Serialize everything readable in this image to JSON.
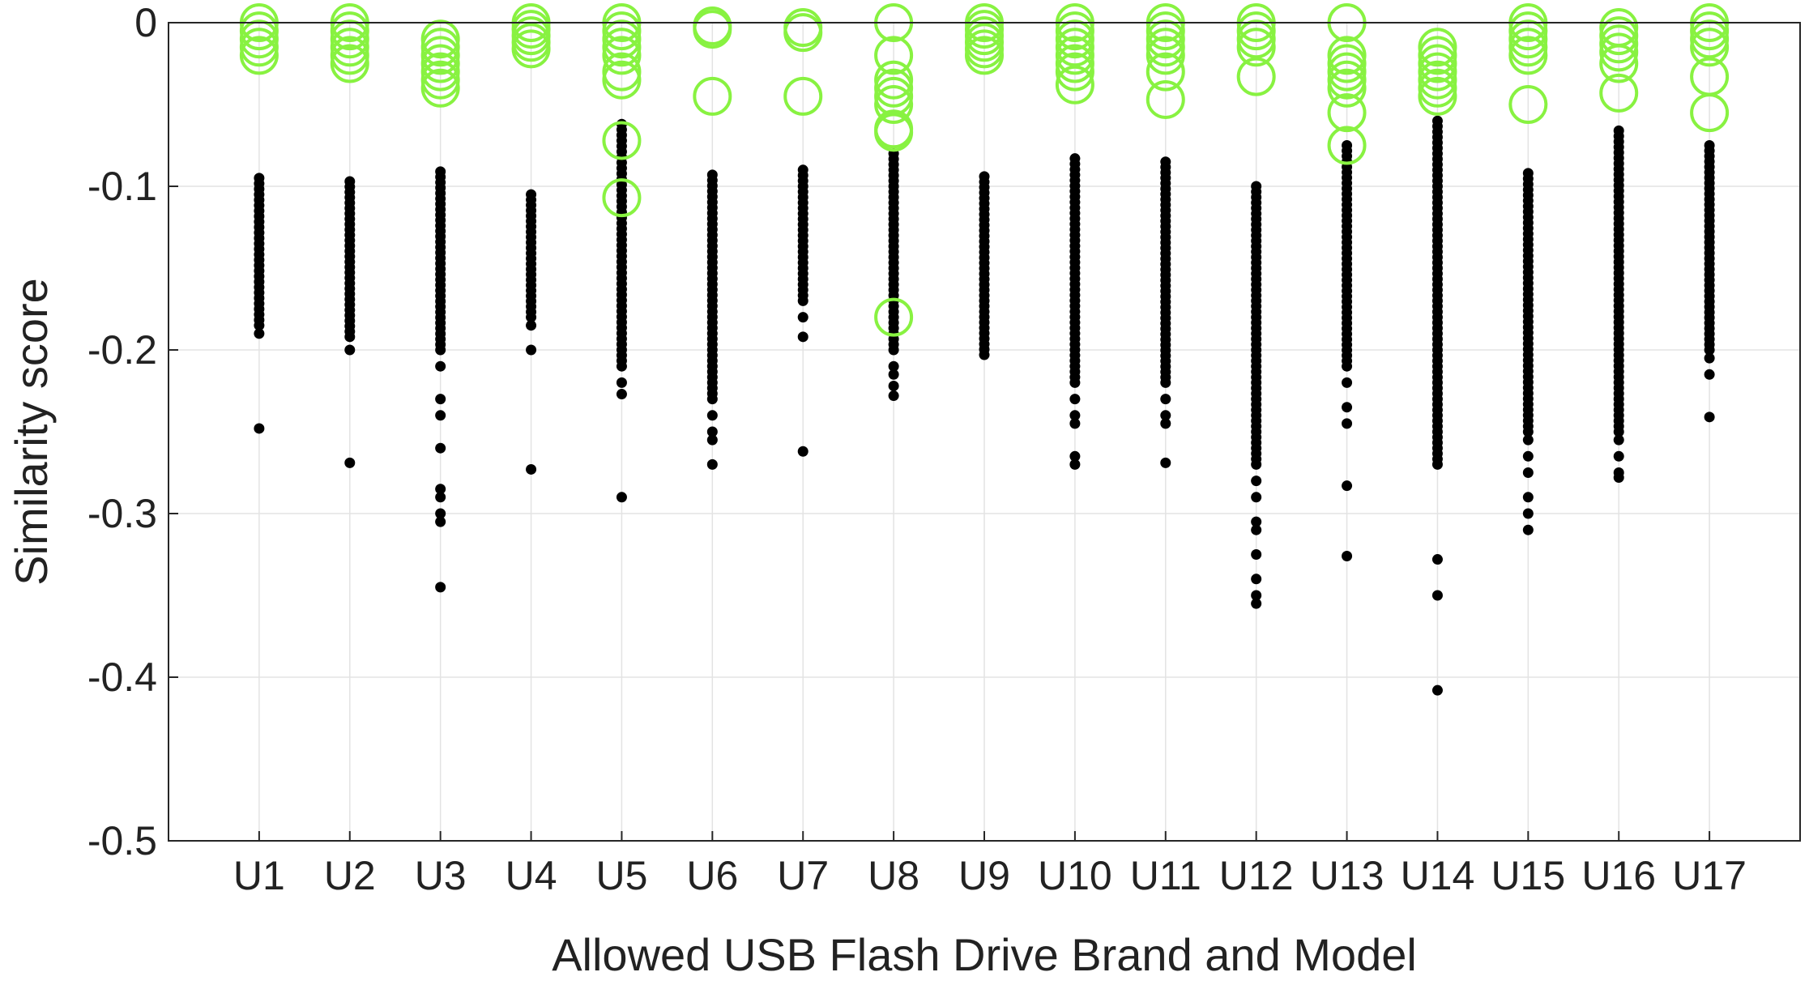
{
  "chart_data": {
    "type": "scatter",
    "title": "",
    "xlabel": "Allowed USB Flash Drive Brand and Model",
    "ylabel": "Similarity score",
    "ylim": [
      -0.5,
      0
    ],
    "yticks": [
      "0",
      "-0.1",
      "-0.2",
      "-0.3",
      "-0.4",
      "-0.5"
    ],
    "ytick_values": [
      0,
      -0.1,
      -0.2,
      -0.3,
      -0.4,
      -0.5
    ],
    "categories": [
      "U1",
      "U2",
      "U3",
      "U4",
      "U5",
      "U6",
      "U7",
      "U8",
      "U9",
      "U10",
      "U11",
      "U12",
      "U13",
      "U14",
      "U15",
      "U16",
      "U17"
    ],
    "grid": true,
    "legend": "none",
    "series": [
      {
        "marker": "filled-dot",
        "color": "#000000",
        "points": [
          {
            "x": "U1",
            "range": [
              -0.095,
              -0.185
            ],
            "outliers": [
              -0.19,
              -0.248
            ]
          },
          {
            "x": "U2",
            "range": [
              -0.097,
              -0.192
            ],
            "outliers": [
              -0.2,
              -0.269
            ]
          },
          {
            "x": "U3",
            "range": [
              -0.091,
              -0.2
            ],
            "outliers": [
              -0.21,
              -0.23,
              -0.24,
              -0.26,
              -0.285,
              -0.29,
              -0.3,
              -0.305,
              -0.345
            ]
          },
          {
            "x": "U4",
            "range": [
              -0.105,
              -0.18
            ],
            "outliers": [
              -0.185,
              -0.2,
              -0.273
            ]
          },
          {
            "x": "U5",
            "range": [
              -0.062,
              -0.21
            ],
            "outliers": [
              -0.22,
              -0.227,
              -0.29
            ]
          },
          {
            "x": "U6",
            "range": [
              -0.093,
              -0.23
            ],
            "outliers": [
              -0.24,
              -0.25,
              -0.255,
              -0.27
            ]
          },
          {
            "x": "U7",
            "range": [
              -0.09,
              -0.17
            ],
            "outliers": [
              -0.18,
              -0.192,
              -0.262
            ]
          },
          {
            "x": "U8",
            "range": [
              -0.08,
              -0.2
            ],
            "outliers": [
              -0.21,
              -0.215,
              -0.222,
              -0.228
            ]
          },
          {
            "x": "U9",
            "range": [
              -0.094,
              -0.203
            ],
            "outliers": []
          },
          {
            "x": "U10",
            "range": [
              -0.083,
              -0.22
            ],
            "outliers": [
              -0.23,
              -0.24,
              -0.245,
              -0.265,
              -0.27
            ]
          },
          {
            "x": "U11",
            "range": [
              -0.085,
              -0.22
            ],
            "outliers": [
              -0.23,
              -0.24,
              -0.245,
              -0.269
            ]
          },
          {
            "x": "U12",
            "range": [
              -0.1,
              -0.27
            ],
            "outliers": [
              -0.28,
              -0.29,
              -0.305,
              -0.31,
              -0.325,
              -0.34,
              -0.35,
              -0.355
            ]
          },
          {
            "x": "U13",
            "range": [
              -0.075,
              -0.21
            ],
            "outliers": [
              -0.22,
              -0.235,
              -0.245,
              -0.283,
              -0.326
            ]
          },
          {
            "x": "U14",
            "range": [
              -0.06,
              -0.27
            ],
            "outliers": [
              -0.328,
              -0.35,
              -0.408
            ]
          },
          {
            "x": "U15",
            "range": [
              -0.092,
              -0.25
            ],
            "outliers": [
              -0.255,
              -0.265,
              -0.275,
              -0.29,
              -0.3,
              -0.31
            ]
          },
          {
            "x": "U16",
            "range": [
              -0.066,
              -0.25
            ],
            "outliers": [
              -0.255,
              -0.265,
              -0.275,
              -0.278
            ]
          },
          {
            "x": "U17",
            "range": [
              -0.075,
              -0.2
            ],
            "outliers": [
              -0.205,
              -0.215,
              -0.241
            ]
          }
        ]
      },
      {
        "marker": "open-circle",
        "color": "#88f241",
        "points": [
          {
            "x": "U1",
            "values": [
              0,
              -0.005,
              -0.01,
              -0.015,
              -0.02
            ]
          },
          {
            "x": "U2",
            "values": [
              0,
              -0.005,
              -0.01,
              -0.015,
              -0.02,
              -0.025
            ]
          },
          {
            "x": "U3",
            "values": [
              -0.01,
              -0.015,
              -0.02,
              -0.025,
              -0.03,
              -0.035,
              -0.04
            ]
          },
          {
            "x": "U4",
            "values": [
              0,
              -0.004,
              -0.008,
              -0.012,
              -0.016
            ]
          },
          {
            "x": "U5",
            "values": [
              0,
              -0.005,
              -0.01,
              -0.015,
              -0.02,
              -0.03,
              -0.035,
              -0.072,
              -0.107
            ]
          },
          {
            "x": "U6",
            "values": [
              -0.002,
              -0.004,
              -0.045
            ]
          },
          {
            "x": "U7",
            "values": [
              -0.003,
              -0.006,
              -0.045
            ]
          },
          {
            "x": "U8",
            "values": [
              0,
              -0.02,
              -0.035,
              -0.04,
              -0.045,
              -0.05,
              -0.065,
              -0.067,
              -0.18
            ]
          },
          {
            "x": "U9",
            "values": [
              0,
              -0.004,
              -0.008,
              -0.012,
              -0.016,
              -0.02
            ]
          },
          {
            "x": "U10",
            "values": [
              0,
              -0.005,
              -0.01,
              -0.015,
              -0.02,
              -0.025,
              -0.03,
              -0.038
            ]
          },
          {
            "x": "U11",
            "values": [
              0,
              -0.005,
              -0.01,
              -0.015,
              -0.02,
              -0.03,
              -0.047
            ]
          },
          {
            "x": "U12",
            "values": [
              0,
              -0.005,
              -0.01,
              -0.015,
              -0.033
            ]
          },
          {
            "x": "U13",
            "values": [
              0,
              -0.02,
              -0.025,
              -0.03,
              -0.035,
              -0.04,
              -0.055,
              -0.075
            ]
          },
          {
            "x": "U14",
            "values": [
              -0.015,
              -0.02,
              -0.025,
              -0.03,
              -0.035,
              -0.04,
              -0.045
            ]
          },
          {
            "x": "U15",
            "values": [
              0,
              -0.005,
              -0.01,
              -0.015,
              -0.02,
              -0.05
            ]
          },
          {
            "x": "U16",
            "values": [
              -0.003,
              -0.008,
              -0.013,
              -0.018,
              -0.025,
              -0.043
            ]
          },
          {
            "x": "U17",
            "values": [
              0,
              -0.005,
              -0.01,
              -0.015,
              -0.033,
              -0.055
            ]
          }
        ]
      }
    ]
  }
}
